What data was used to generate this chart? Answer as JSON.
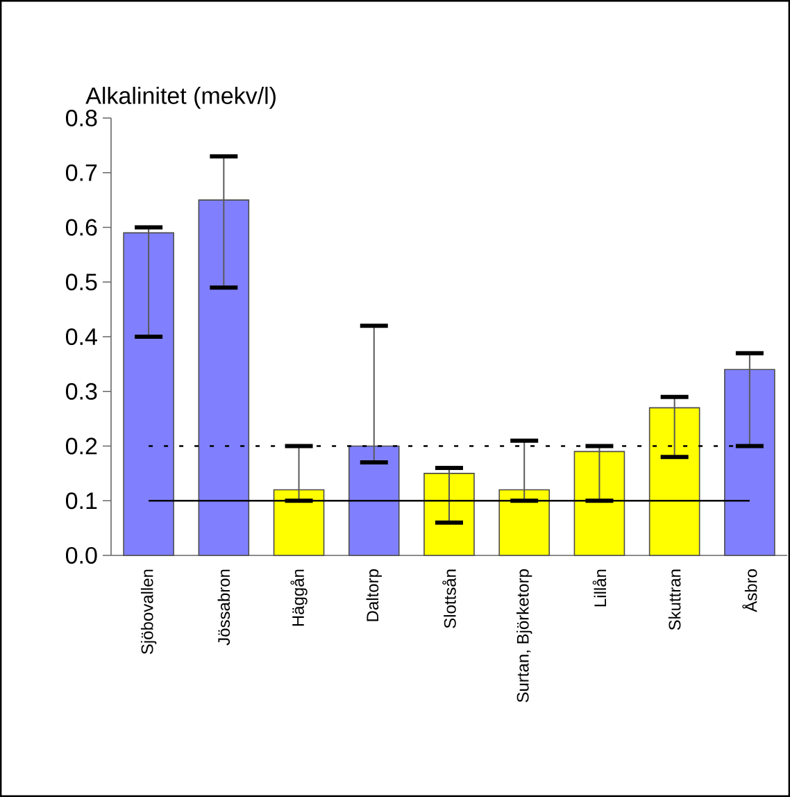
{
  "chart_data": {
    "type": "bar",
    "title": "Alkalinitet (mekv/l)",
    "categories": [
      "Sjöbovallen",
      "Jössabron",
      "Häggån",
      "Daltorp",
      "Slottsån",
      "Surtan, Björketorp",
      "Lillån",
      "Skuttran",
      "Åsbro"
    ],
    "values": [
      0.59,
      0.65,
      0.12,
      0.2,
      0.15,
      0.12,
      0.19,
      0.27,
      0.34
    ],
    "colors": [
      "#8080ff",
      "#8080ff",
      "#ffff00",
      "#8080ff",
      "#ffff00",
      "#ffff00",
      "#ffff00",
      "#ffff00",
      "#8080ff"
    ],
    "errors": [
      [
        0.4,
        0.6
      ],
      [
        0.49,
        0.73
      ],
      [
        0.1,
        0.2
      ],
      [
        0.17,
        0.42
      ],
      [
        0.06,
        0.16
      ],
      [
        0.1,
        0.21
      ],
      [
        0.1,
        0.2
      ],
      [
        0.18,
        0.29
      ],
      [
        0.2,
        0.37
      ]
    ],
    "ylim": [
      0,
      0.8
    ],
    "yticks": [
      {
        "value": 0,
        "label": "0.0"
      },
      {
        "value": 0.1,
        "label": "0.1"
      },
      {
        "value": 0.2,
        "label": "0.2"
      },
      {
        "value": 0.3,
        "label": "0.3"
      },
      {
        "value": 0.4,
        "label": "0.4"
      },
      {
        "value": 0.5,
        "label": "0.5"
      },
      {
        "value": 0.6,
        "label": "0.6"
      },
      {
        "value": 0.7,
        "label": "0.7"
      },
      {
        "value": 0.8,
        "label": "0.8"
      }
    ],
    "ref_lines": [
      {
        "axis": "y",
        "value": 0.1,
        "line_style": "solid",
        "color": "#000000"
      },
      {
        "axis": "y",
        "value": 0.2,
        "line_style": "dashed",
        "color": "#000000"
      }
    ],
    "grid": false
  }
}
